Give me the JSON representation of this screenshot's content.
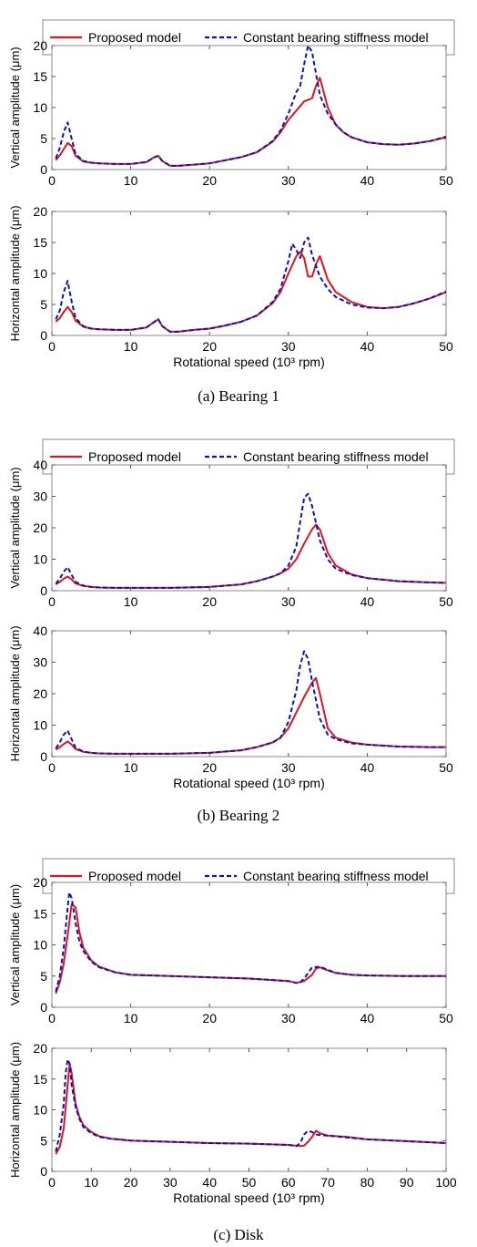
{
  "legend": {
    "proposed_label": "Proposed model",
    "constant_label": "Constant bearing stiffness model"
  },
  "colors": {
    "proposed": "#e0141e",
    "constant": "#0a14b4"
  },
  "chart_data": [
    {
      "type": "line",
      "panel": "bearing-1-vertical",
      "ylabel": "Vertical amplitude (μm)",
      "xlabel": "",
      "xlim": [
        0,
        50
      ],
      "ylim": [
        0,
        20
      ],
      "xticks": [
        0,
        10,
        20,
        30,
        40,
        50
      ],
      "yticks": [
        0,
        5,
        10,
        15,
        20
      ],
      "series": [
        {
          "name": "Proposed model",
          "x": [
            0.5,
            1,
            1.5,
            2,
            2.5,
            3,
            4,
            5,
            6,
            8,
            10,
            12,
            13,
            13.5,
            14,
            15,
            16,
            18,
            20,
            22,
            24,
            26,
            28,
            29,
            30,
            31,
            32,
            33,
            33.5,
            34,
            35,
            36,
            37,
            38,
            40,
            42,
            44,
            46,
            48,
            50
          ],
          "y": [
            1.5,
            2.3,
            3.3,
            4.3,
            3.8,
            2.2,
            1.3,
            1.1,
            1.0,
            0.9,
            0.9,
            1.2,
            2.0,
            2.2,
            1.4,
            0.6,
            0.6,
            0.8,
            1.0,
            1.5,
            2.0,
            2.8,
            4.5,
            6.0,
            8.0,
            9.5,
            11.0,
            11.5,
            13.5,
            14.8,
            10.0,
            7.2,
            6.0,
            5.2,
            4.4,
            4.1,
            4.0,
            4.2,
            4.6,
            5.2
          ]
        },
        {
          "name": "Constant bearing stiffness model",
          "x": [
            0.5,
            1,
            1.5,
            2,
            2.5,
            3,
            4,
            5,
            6,
            8,
            10,
            12,
            13,
            13.5,
            14,
            15,
            16,
            18,
            20,
            22,
            24,
            26,
            28,
            29,
            30,
            31,
            31.5,
            32,
            32.5,
            33,
            34,
            35,
            36,
            37,
            38,
            40,
            42,
            44,
            46,
            48,
            50
          ],
          "y": [
            1.8,
            3.5,
            6.0,
            7.6,
            5.0,
            2.5,
            1.4,
            1.1,
            1.0,
            0.9,
            0.9,
            1.2,
            2.0,
            2.2,
            1.4,
            0.6,
            0.6,
            0.8,
            1.0,
            1.5,
            2.0,
            2.8,
            4.6,
            6.3,
            9.0,
            12.5,
            13.5,
            17.0,
            20.0,
            19.0,
            12.0,
            9.0,
            7.3,
            6.0,
            5.2,
            4.4,
            4.1,
            4.0,
            4.2,
            4.6,
            5.3
          ]
        }
      ]
    },
    {
      "type": "line",
      "panel": "bearing-1-horizontal",
      "ylabel": "Horizontal amplitude (μm)",
      "xlabel": "Rotational speed (10³ rpm)",
      "xlim": [
        0,
        50
      ],
      "ylim": [
        0,
        20
      ],
      "xticks": [
        0,
        10,
        20,
        30,
        40,
        50
      ],
      "yticks": [
        0,
        5,
        10,
        15,
        20
      ],
      "series": [
        {
          "name": "Proposed model",
          "x": [
            0.5,
            1,
            1.5,
            2,
            2.5,
            3,
            4,
            5,
            6,
            8,
            10,
            12,
            13,
            13.5,
            14,
            15,
            16,
            18,
            20,
            22,
            24,
            26,
            28,
            29,
            30,
            31,
            31.5,
            32,
            32.5,
            33,
            33.5,
            34,
            35,
            36,
            38,
            40,
            42,
            44,
            46,
            48,
            50
          ],
          "y": [
            2.2,
            2.8,
            3.8,
            4.6,
            3.8,
            2.4,
            1.4,
            1.1,
            1.0,
            0.9,
            0.9,
            1.3,
            2.2,
            2.6,
            1.5,
            0.6,
            0.6,
            0.9,
            1.1,
            1.6,
            2.2,
            3.2,
            5.2,
            7.0,
            10.0,
            12.8,
            13.5,
            12.5,
            9.5,
            9.5,
            11.5,
            12.8,
            9.0,
            7.0,
            5.4,
            4.6,
            4.4,
            4.6,
            5.2,
            6.0,
            7.0
          ]
        },
        {
          "name": "Constant bearing stiffness model",
          "x": [
            0.5,
            1,
            1.5,
            2,
            2.5,
            3,
            4,
            5,
            6,
            8,
            10,
            12,
            13,
            13.5,
            14,
            15,
            16,
            18,
            20,
            22,
            24,
            26,
            28,
            29,
            30,
            30.5,
            31,
            31.5,
            32,
            32.5,
            33,
            34,
            35,
            36,
            38,
            40,
            42,
            44,
            46,
            48,
            50
          ],
          "y": [
            2.6,
            4.0,
            7.0,
            8.8,
            5.5,
            2.8,
            1.5,
            1.1,
            1.0,
            0.9,
            0.9,
            1.3,
            2.2,
            2.6,
            1.5,
            0.6,
            0.6,
            0.9,
            1.1,
            1.6,
            2.2,
            3.2,
            5.4,
            7.5,
            12.0,
            14.8,
            13.8,
            12.5,
            15.0,
            15.8,
            13.0,
            9.5,
            7.5,
            6.2,
            5.0,
            4.5,
            4.4,
            4.6,
            5.2,
            6.0,
            7.1
          ]
        }
      ]
    },
    {
      "type": "line",
      "panel": "bearing-2-vertical",
      "ylabel": "Vertical amplitude (μm)",
      "xlabel": "",
      "xlim": [
        0,
        50
      ],
      "ylim": [
        0,
        40
      ],
      "xticks": [
        0,
        10,
        20,
        30,
        40,
        50
      ],
      "yticks": [
        0,
        10,
        20,
        30,
        40
      ],
      "series": [
        {
          "name": "Proposed model",
          "x": [
            0.5,
            1,
            1.5,
            2,
            2.5,
            3,
            4,
            5,
            6,
            8,
            10,
            15,
            20,
            24,
            26,
            28,
            29,
            30,
            31,
            32,
            33,
            33.5,
            34,
            35,
            36,
            38,
            40,
            44,
            48,
            50
          ],
          "y": [
            2.0,
            2.8,
            3.8,
            4.5,
            3.6,
            2.3,
            1.5,
            1.2,
            1.0,
            0.9,
            0.9,
            0.9,
            1.2,
            2.0,
            3.0,
            4.5,
            5.5,
            7.0,
            10.0,
            15.0,
            19.5,
            21.0,
            19.5,
            12.0,
            8.0,
            5.2,
            4.0,
            3.0,
            2.6,
            2.5
          ]
        },
        {
          "name": "Constant bearing stiffness model",
          "x": [
            0.5,
            1,
            1.5,
            2,
            2.5,
            3,
            4,
            5,
            6,
            8,
            10,
            15,
            20,
            24,
            26,
            28,
            29,
            30,
            31,
            31.5,
            32,
            32.5,
            33,
            34,
            35,
            36,
            38,
            40,
            44,
            48,
            50
          ],
          "y": [
            2.2,
            3.8,
            6.0,
            7.5,
            5.0,
            2.8,
            1.6,
            1.2,
            1.0,
            0.9,
            0.9,
            0.9,
            1.2,
            2.0,
            3.0,
            4.5,
            5.5,
            8.0,
            14.0,
            22.0,
            29.5,
            30.8,
            27.0,
            16.0,
            10.0,
            7.0,
            5.0,
            4.0,
            3.0,
            2.6,
            2.5
          ]
        }
      ]
    },
    {
      "type": "line",
      "panel": "bearing-2-horizontal",
      "ylabel": "Horizontal amplitude (μm)",
      "xlabel": "Rotational speed (10³ rpm)",
      "xlim": [
        0,
        50
      ],
      "ylim": [
        0,
        40
      ],
      "xticks": [
        0,
        10,
        20,
        30,
        40,
        50
      ],
      "yticks": [
        0,
        10,
        20,
        30,
        40
      ],
      "series": [
        {
          "name": "Proposed model",
          "x": [
            0.5,
            1,
            1.5,
            2,
            2.5,
            3,
            4,
            5,
            6,
            8,
            10,
            15,
            20,
            24,
            26,
            28,
            29,
            30,
            31,
            32,
            33,
            33.5,
            34,
            35,
            36,
            38,
            40,
            44,
            48,
            50
          ],
          "y": [
            2.2,
            3.0,
            4.0,
            4.8,
            3.8,
            2.4,
            1.5,
            1.2,
            1.0,
            0.9,
            0.9,
            0.9,
            1.2,
            2.0,
            3.0,
            4.5,
            6.0,
            9.0,
            14.0,
            19.0,
            23.5,
            25.0,
            20.0,
            9.0,
            6.0,
            4.5,
            3.8,
            3.2,
            3.0,
            3.0
          ]
        },
        {
          "name": "Constant bearing stiffness model",
          "x": [
            0.5,
            1,
            1.5,
            2,
            2.5,
            3,
            4,
            5,
            6,
            8,
            10,
            15,
            20,
            24,
            26,
            28,
            29,
            30,
            31,
            31.5,
            32,
            32.5,
            33,
            34,
            35,
            36,
            38,
            40,
            44,
            48,
            50
          ],
          "y": [
            2.6,
            4.5,
            7.0,
            8.3,
            5.5,
            2.8,
            1.6,
            1.2,
            1.0,
            0.9,
            0.9,
            0.9,
            1.2,
            2.0,
            3.0,
            4.5,
            6.0,
            11.0,
            21.0,
            29.0,
            33.5,
            31.0,
            24.0,
            12.0,
            7.0,
            5.5,
            4.2,
            3.8,
            3.2,
            3.0,
            3.0
          ]
        }
      ]
    },
    {
      "type": "line",
      "panel": "disk-vertical",
      "ylabel": "Vertical amplitude (μm)",
      "xlabel": "",
      "xlim": [
        0,
        50
      ],
      "ylim": [
        0,
        20
      ],
      "xticks": [
        0,
        10,
        20,
        30,
        40,
        50
      ],
      "yticks": [
        0,
        5,
        10,
        15,
        20
      ],
      "series": [
        {
          "name": "Proposed model",
          "x": [
            0.5,
            1,
            1.5,
            2,
            2.5,
            3,
            3.5,
            4,
            5,
            6,
            8,
            10,
            15,
            20,
            25,
            30,
            31,
            32,
            33,
            33.5,
            34,
            35,
            36,
            38,
            40,
            45,
            50
          ],
          "y": [
            2.2,
            4.0,
            7.0,
            11.5,
            16.5,
            16.0,
            12.0,
            9.5,
            7.5,
            6.5,
            5.6,
            5.2,
            5.0,
            4.8,
            4.6,
            4.2,
            3.9,
            4.2,
            5.2,
            6.2,
            6.4,
            5.9,
            5.5,
            5.2,
            5.1,
            5.0,
            5.0
          ]
        },
        {
          "name": "Constant bearing stiffness model",
          "x": [
            0.5,
            1,
            1.5,
            2,
            2.2,
            2.5,
            3,
            3.5,
            4,
            5,
            6,
            8,
            10,
            15,
            20,
            25,
            30,
            31,
            31.5,
            32,
            33,
            34,
            35,
            36,
            38,
            40,
            45,
            50
          ],
          "y": [
            2.5,
            5.0,
            9.5,
            16.0,
            18.4,
            17.5,
            13.5,
            10.5,
            9.0,
            7.3,
            6.4,
            5.6,
            5.2,
            5.0,
            4.8,
            4.6,
            4.2,
            3.9,
            4.0,
            4.6,
            6.4,
            6.5,
            6.0,
            5.5,
            5.2,
            5.1,
            5.0,
            5.0
          ]
        }
      ]
    },
    {
      "type": "line",
      "panel": "disk-horizontal",
      "ylabel": "Horizontal amplitude (μm)",
      "xlabel": "Rotational speed (10³ rpm)",
      "xlim": [
        0,
        100
      ],
      "ylim": [
        0,
        20
      ],
      "xticks": [
        0,
        10,
        20,
        30,
        40,
        50,
        60,
        70,
        80,
        90,
        100
      ],
      "yticks": [
        0,
        5,
        10,
        15,
        20
      ],
      "series": [
        {
          "name": "Proposed model",
          "x": [
            1,
            2,
            3,
            4,
            4.5,
            5,
            6,
            7,
            8,
            10,
            12,
            15,
            20,
            30,
            40,
            50,
            60,
            63,
            64,
            65,
            66,
            67,
            68,
            70,
            75,
            80,
            90,
            100
          ],
          "y": [
            2.8,
            4.0,
            7.0,
            14.0,
            17.5,
            16.0,
            11.0,
            8.8,
            7.5,
            6.4,
            5.7,
            5.3,
            5.0,
            4.8,
            4.6,
            4.5,
            4.3,
            4.1,
            4.2,
            4.8,
            5.6,
            6.6,
            6.2,
            5.8,
            5.6,
            5.2,
            4.9,
            4.6
          ]
        },
        {
          "name": "Constant bearing stiffness model",
          "x": [
            1,
            2,
            3,
            3.5,
            4,
            4.5,
            5,
            6,
            7,
            8,
            10,
            12,
            15,
            20,
            30,
            40,
            50,
            60,
            62,
            63,
            64,
            65,
            66,
            67,
            68,
            70,
            75,
            80,
            90,
            100
          ],
          "y": [
            3.2,
            6.0,
            11.0,
            16.0,
            18.2,
            17.5,
            14.0,
            10.5,
            8.5,
            7.2,
            6.2,
            5.6,
            5.3,
            5.0,
            4.8,
            4.6,
            4.5,
            4.3,
            4.1,
            4.6,
            6.0,
            6.6,
            6.4,
            6.0,
            5.9,
            5.8,
            5.5,
            5.2,
            4.9,
            4.6
          ]
        }
      ]
    }
  ],
  "captions": [
    "(a) Bearing 1",
    "(b) Bearing 2",
    "(c) Disk"
  ]
}
